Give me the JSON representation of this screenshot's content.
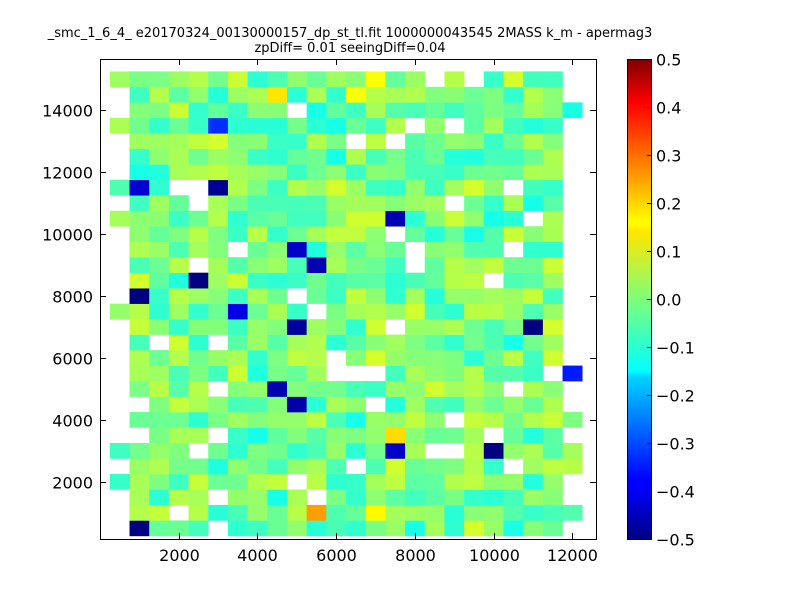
{
  "chart_data": {
    "type": "heatmap",
    "title_lines": [
      "_smc_1_6_4_ e20170324_00130000157_dp_st_tl.fit 1000000043545 2MASS k_m - apermag3",
      "zpDiff= 0.01 seeingDiff=0.04"
    ],
    "xlabel": "",
    "ylabel": "",
    "xlim": [
      0,
      12600
    ],
    "ylim": [
      150,
      15650
    ],
    "x_ticks": [
      2000,
      4000,
      6000,
      8000,
      10000,
      12000
    ],
    "y_ticks": [
      2000,
      4000,
      6000,
      8000,
      10000,
      12000,
      14000
    ],
    "x_tick_labels": [
      "2000",
      "4000",
      "6000",
      "8000",
      "10000",
      "12000"
    ],
    "y_tick_labels": [
      "2000",
      "4000",
      "6000",
      "8000",
      "10000",
      "12000",
      "14000"
    ],
    "colorbar": {
      "colormap": "jet",
      "range": [
        -0.5,
        0.5
      ],
      "ticks": [
        -0.5,
        -0.4,
        -0.3,
        -0.2,
        -0.1,
        0.0,
        0.1,
        0.2,
        0.3,
        0.4,
        0.5
      ],
      "tick_labels": [
        "−0.5",
        "−0.4",
        "−0.3",
        "−0.2",
        "−0.1",
        "0.0",
        "0.1",
        "0.2",
        "0.3",
        "0.4",
        "0.5"
      ]
    },
    "grid": false,
    "cell_width": 500,
    "cell_height": 500,
    "notable_cells": [
      {
        "x": 1000,
        "y": 11500,
        "value": -0.42
      },
      {
        "x": 3000,
        "y": 11500,
        "value": -0.48
      },
      {
        "x": 3000,
        "y": 13500,
        "value": -0.33
      },
      {
        "x": 7500,
        "y": 10500,
        "value": -0.45
      },
      {
        "x": 5000,
        "y": 9500,
        "value": -0.43
      },
      {
        "x": 5500,
        "y": 9000,
        "value": -0.45
      },
      {
        "x": 2500,
        "y": 8500,
        "value": -0.5
      },
      {
        "x": 1000,
        "y": 8000,
        "value": -0.5
      },
      {
        "x": 3500,
        "y": 7500,
        "value": -0.4
      },
      {
        "x": 5000,
        "y": 7000,
        "value": -0.47
      },
      {
        "x": 11000,
        "y": 7000,
        "value": -0.5
      },
      {
        "x": 4500,
        "y": 5000,
        "value": -0.45
      },
      {
        "x": 5000,
        "y": 4500,
        "value": -0.46
      },
      {
        "x": 7500,
        "y": 3000,
        "value": -0.43
      },
      {
        "x": 10000,
        "y": 3000,
        "value": -0.5
      },
      {
        "x": 1000,
        "y": 500,
        "value": -0.5
      },
      {
        "x": 12000,
        "y": 5500,
        "value": -0.35
      },
      {
        "x": 4500,
        "y": 14500,
        "value": 0.15
      },
      {
        "x": 6500,
        "y": 14500,
        "value": 0.12
      },
      {
        "x": 7000,
        "y": 15000,
        "value": 0.12
      },
      {
        "x": 5500,
        "y": 1000,
        "value": 0.22
      },
      {
        "x": 7500,
        "y": 3500,
        "value": 0.16
      },
      {
        "x": 7000,
        "y": 1000,
        "value": 0.13
      }
    ],
    "background_values": [
      -0.06,
      -0.03,
      0.0,
      0.03,
      0.06,
      -0.08,
      0.04,
      -0.01
    ],
    "empty_cells_note": "white gaps where no data"
  }
}
